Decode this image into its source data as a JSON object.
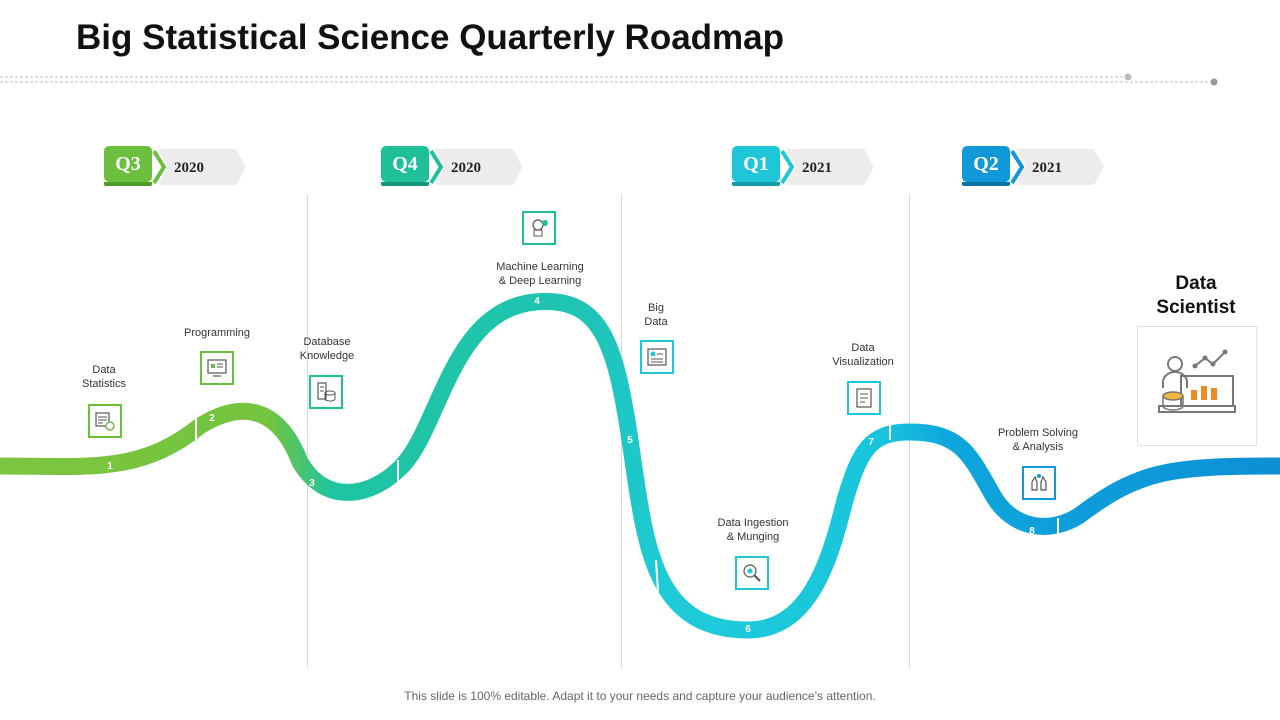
{
  "title": "Big Statistical Science Quarterly Roadmap",
  "quarters": [
    {
      "label": "Q3",
      "year": "2020",
      "color": "#6cbf3c"
    },
    {
      "label": "Q4",
      "year": "2020",
      "color": "#1fbf9a"
    },
    {
      "label": "Q1",
      "year": "2021",
      "color": "#1ec6d8"
    },
    {
      "label": "Q2",
      "year": "2021",
      "color": "#1198d8"
    }
  ],
  "milestones": [
    {
      "number": "1",
      "label": "Data\nStatistics",
      "icon": "data-statistics-icon"
    },
    {
      "number": "2",
      "label": "Programming",
      "icon": "programming-icon"
    },
    {
      "number": "3",
      "label": "Database\nKnowledge",
      "icon": "database-icon"
    },
    {
      "number": "4",
      "label": "Machine Learning\n& Deep Learning",
      "icon": "machine-learning-icon"
    },
    {
      "number": "5",
      "label": "Big\nData",
      "icon": "big-data-icon"
    },
    {
      "number": "6",
      "label": "Data Ingestion\n& Munging",
      "icon": "data-ingestion-icon"
    },
    {
      "number": "7",
      "label": "Data\nVisualization",
      "icon": "data-visualization-icon"
    },
    {
      "number": "8",
      "label": "Problem Solving\n& Analysis",
      "icon": "problem-solving-icon"
    }
  ],
  "goal": {
    "label": "Data\nScientist",
    "icon": "data-scientist-icon"
  },
  "colors": {
    "green": "#6cbf3c",
    "teal": "#1fbf9a",
    "cyan": "#1ec6d8",
    "blue": "#1198d8"
  },
  "footer": "This slide is 100% editable. Adapt it to your needs and capture your audience’s attention."
}
